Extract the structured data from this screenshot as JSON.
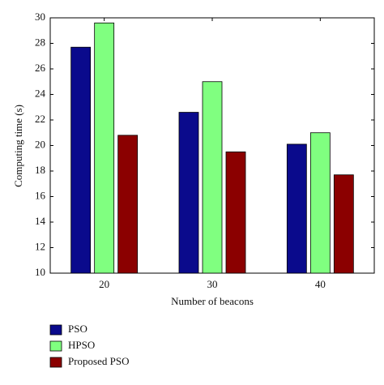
{
  "chart_data": {
    "type": "bar",
    "x_label": "Number of beacons",
    "y_label": "Computing time (s)",
    "categories": [
      "20",
      "30",
      "40"
    ],
    "series": [
      {
        "name": "PSO",
        "color": "#0a0a8c",
        "values": [
          27.7,
          22.6,
          20.1
        ]
      },
      {
        "name": "HPSO",
        "color": "#80ff80",
        "values": [
          29.6,
          25.0,
          21.0
        ]
      },
      {
        "name": "Proposed PSO",
        "color": "#8b0000",
        "values": [
          20.8,
          19.5,
          17.7
        ]
      }
    ],
    "ylim": [
      10,
      30
    ],
    "yticks": [
      10,
      12,
      14,
      16,
      18,
      20,
      22,
      24,
      26,
      28,
      30
    ]
  }
}
